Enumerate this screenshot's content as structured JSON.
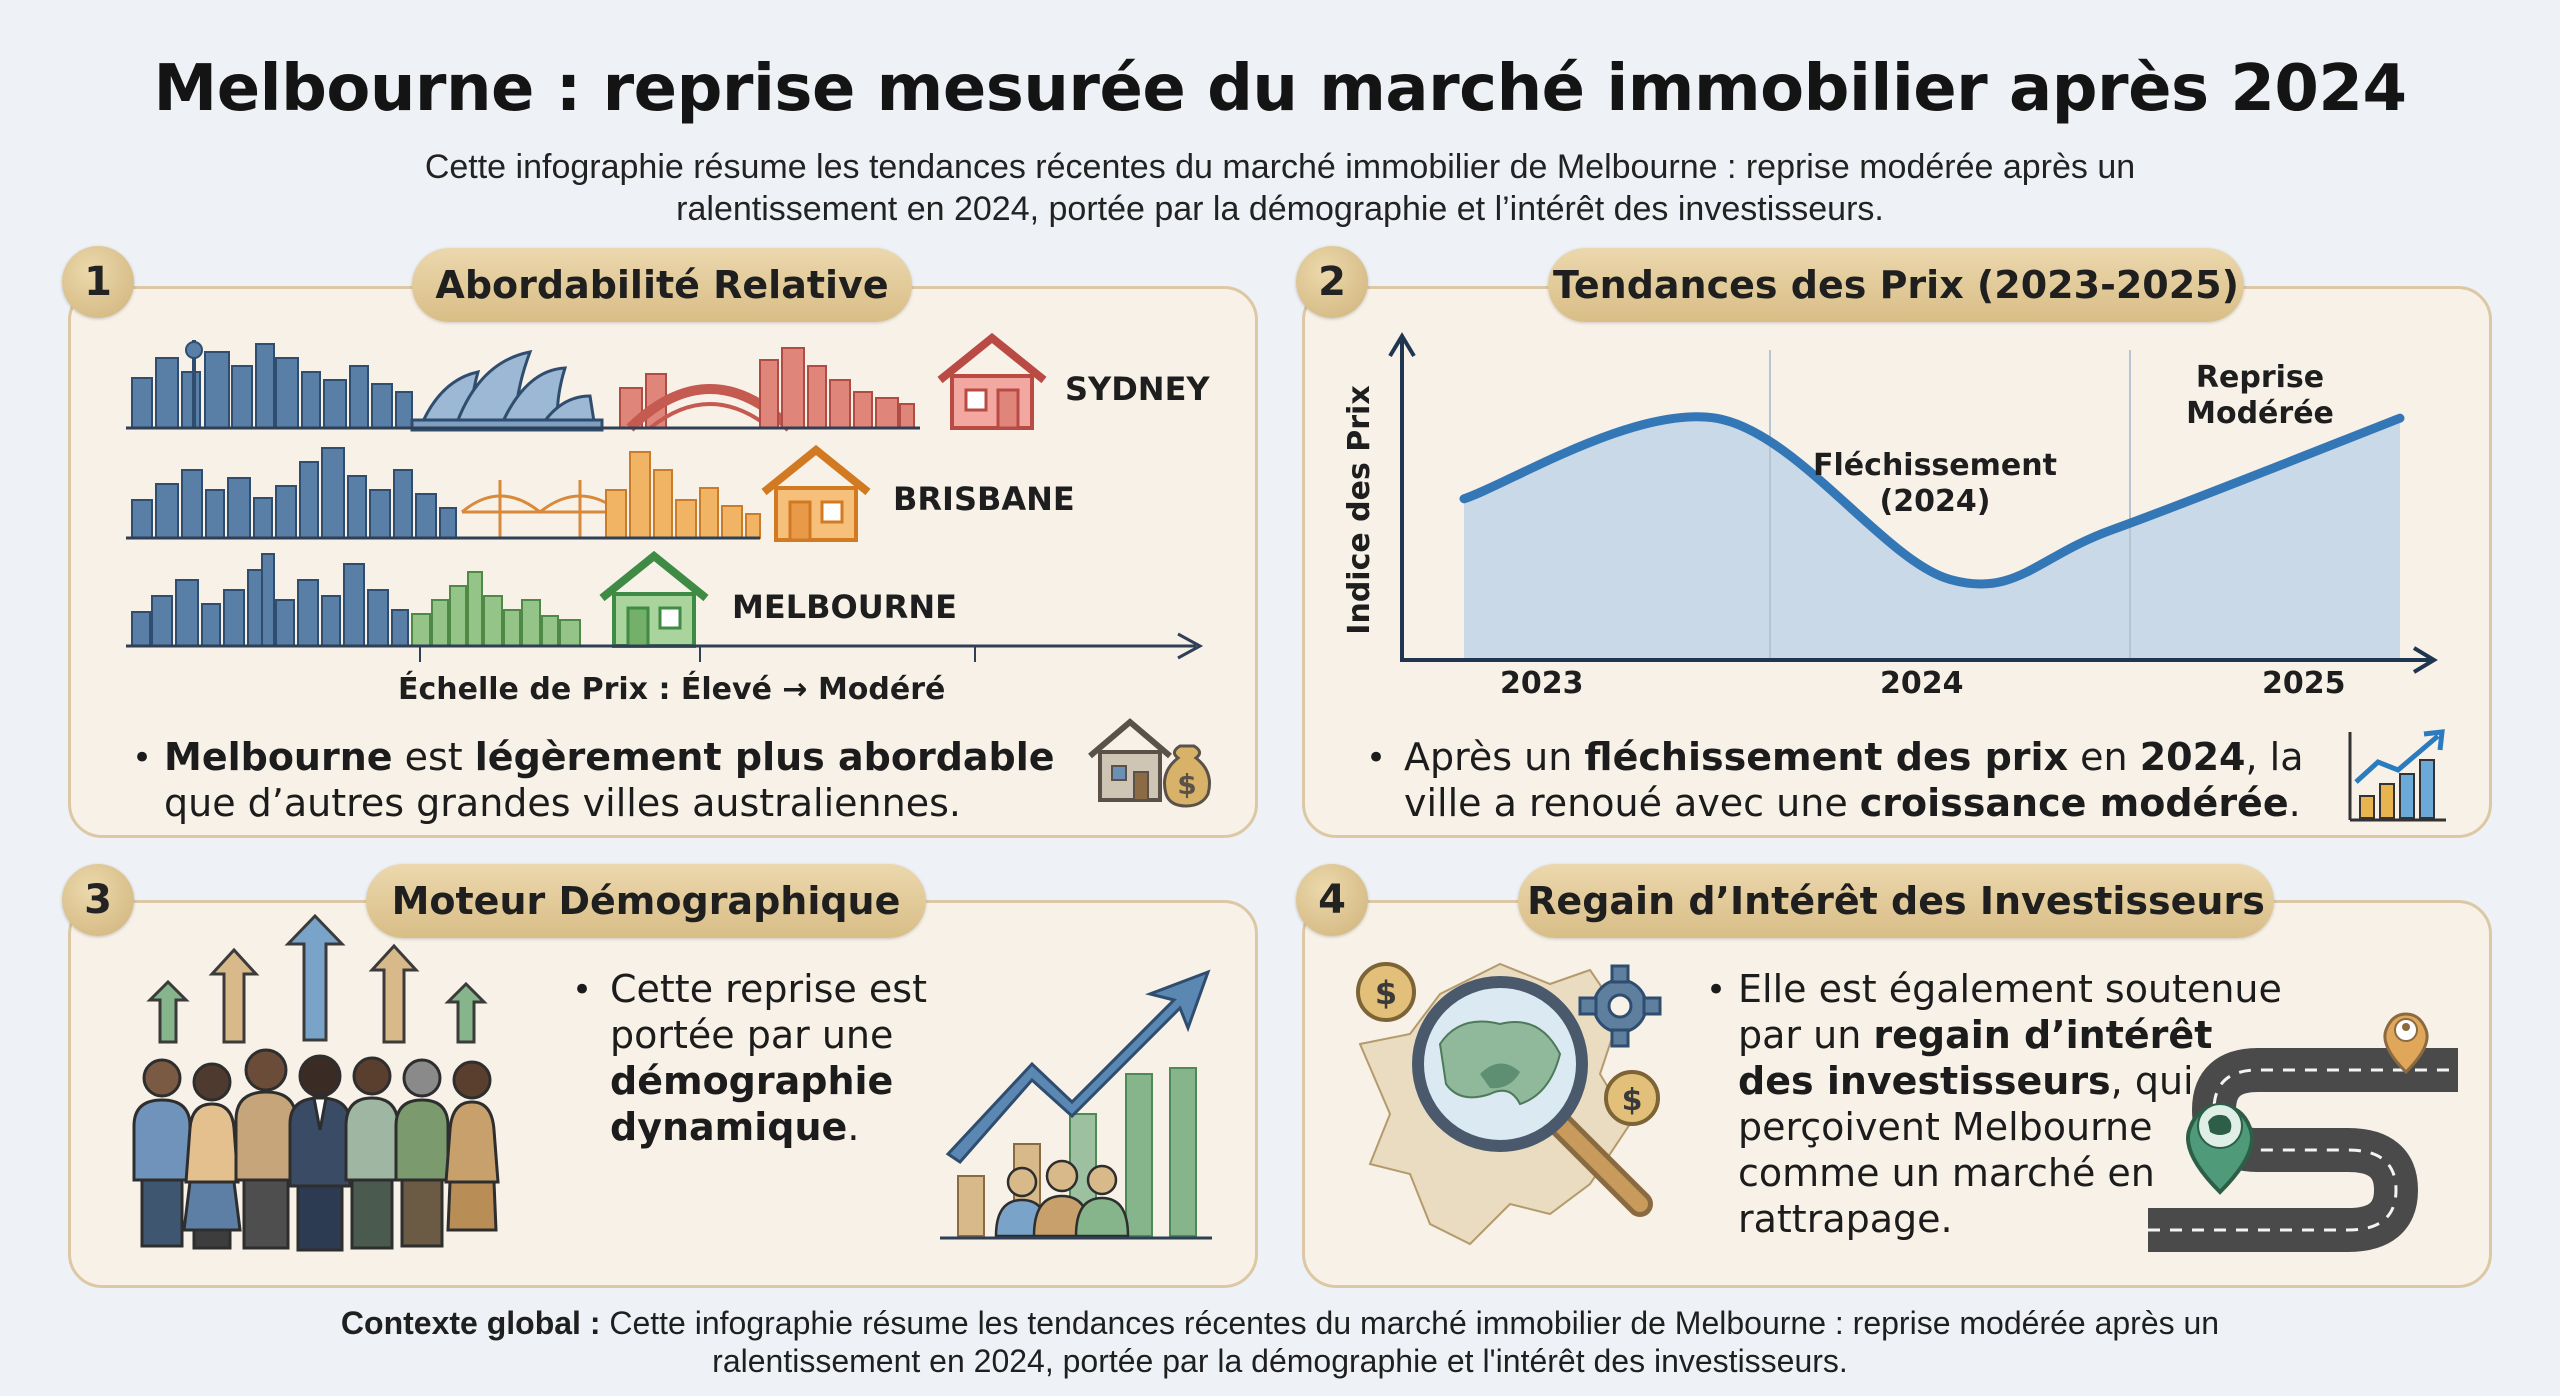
{
  "title": "Melbourne : reprise mesurée du marché immobilier après 2024",
  "subtitle": "Cette infographie résume les tendances récentes du marché immobilier de Melbourne : reprise modérée après un ralentissement en 2024, portée par la démographie et l’intérêt des investisseurs.",
  "panels": {
    "p1": {
      "number": "1",
      "heading": "Abordabilité Relative",
      "cities": [
        "SYDNEY",
        "BRISBANE",
        "MELBOURNE"
      ],
      "scale_label": "Échelle de Prix : Élevé → Modéré",
      "bullet": "•",
      "text_b1": "Melbourne",
      "text_m1": " est ",
      "text_b2": "légèrement plus abordable",
      "text_m2": " que d’autres grandes villes australiennes."
    },
    "p2": {
      "number": "2",
      "heading": "Tendances des Prix (2023-2025)",
      "bullet": "•",
      "text_m1": "Après un ",
      "text_b1": "fléchissement des prix",
      "text_m2": " en ",
      "text_b2": "2024",
      "text_m3": ", la ville a renoué avec une ",
      "text_b3": "croissance modérée",
      "text_m4": "."
    },
    "p3": {
      "number": "3",
      "heading": "Moteur Démographique",
      "bullet": "•",
      "text_m1": "Cette reprise est portée par une ",
      "text_b1": "démographie dynamique",
      "text_m2": "."
    },
    "p4": {
      "number": "4",
      "heading": "Regain d’Intérêt des Investisseurs",
      "bullet": "•",
      "text_m1": "Elle est également soutenue par un ",
      "text_b1": "regain d’intérêt des investisseurs",
      "text_m2": ", qui perçoivent Melbourne comme un marché en rattrapage."
    }
  },
  "chart_data": {
    "type": "area",
    "x": [
      "2023",
      "2024",
      "2025"
    ],
    "ylabel": "Indice des Prix",
    "xlabel": "",
    "annotations": [
      "Fléchissement (2024)",
      "Reprise Modérée"
    ],
    "series": [
      {
        "points": [
          [
            2022.65,
            0.52
          ],
          [
            2023.35,
            0.78
          ],
          [
            2024.0,
            0.26
          ],
          [
            2024.45,
            0.42
          ],
          [
            2025.25,
            0.78
          ]
        ]
      }
    ],
    "grid": "vertical separators",
    "colors": {
      "line": "#3477b6",
      "fill": "#c9d9e8"
    }
  },
  "footer": {
    "bold": "Contexte global :",
    "text": " Cette infographie résume les tendances récentes du marché immobilier de Melbourne : reprise modérée après un ralentissement en 2024, portée par la démographie et l'intérêt des investisseurs."
  },
  "icons": [
    "sydney-opera-house-icon",
    "house-icon",
    "house-money-bag-icon",
    "growth-chart-icon",
    "people-crowd-icon",
    "arrow-up-icon",
    "dollar-coin-icon",
    "magnifier-map-icon",
    "gear-icon",
    "road-map-pin-icon"
  ]
}
